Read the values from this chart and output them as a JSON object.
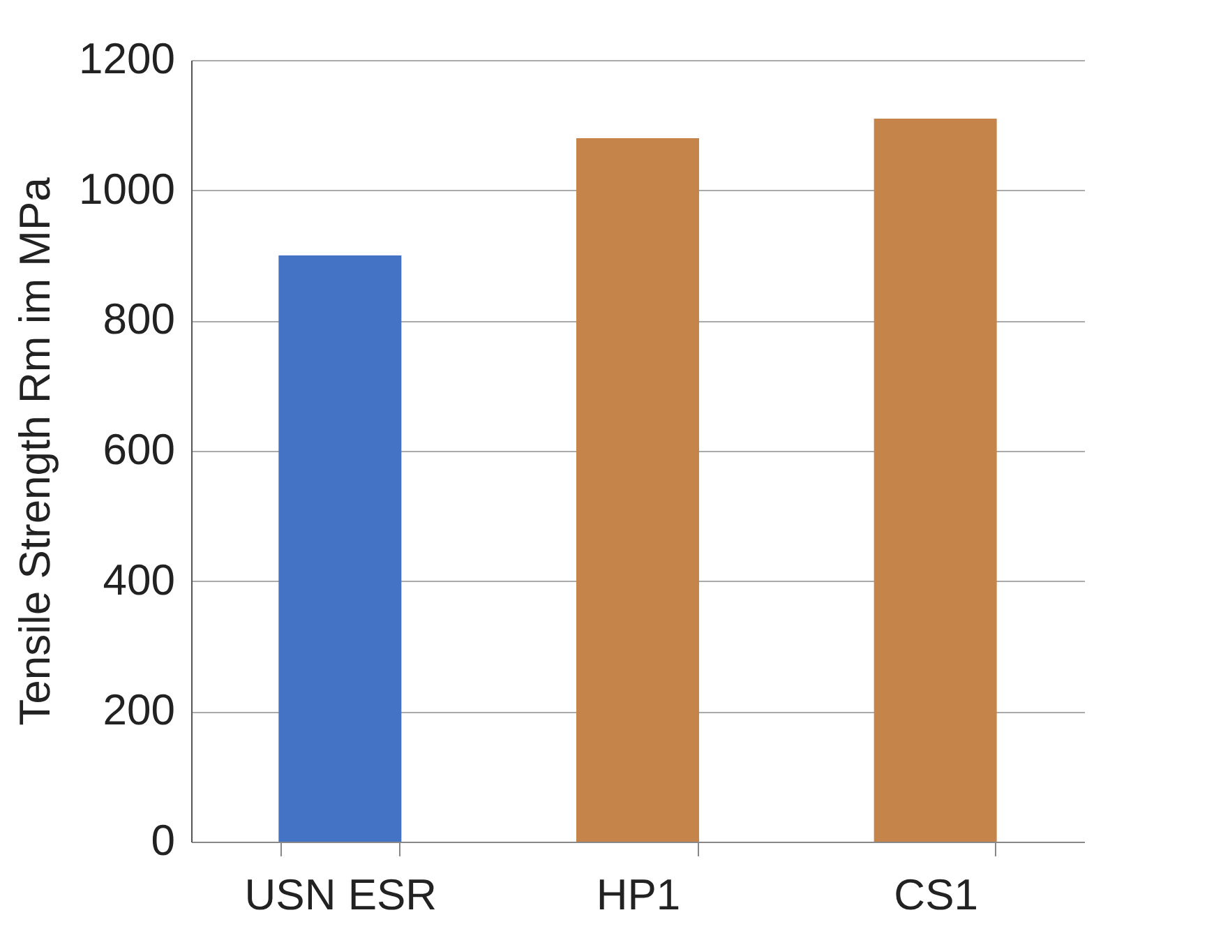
{
  "chart_data": {
    "type": "bar",
    "ylabel": "Tensile Strength Rm im MPa",
    "categories": [
      "USN ESR",
      "HP1",
      "CS1"
    ],
    "values": [
      900,
      1080,
      1110
    ],
    "colors": [
      "#4472c4",
      "#c5844a",
      "#c5844a"
    ],
    "ylim": [
      0,
      1200
    ],
    "yticks": [
      0,
      200,
      400,
      600,
      800,
      1000,
      1200
    ],
    "grid": "y"
  }
}
